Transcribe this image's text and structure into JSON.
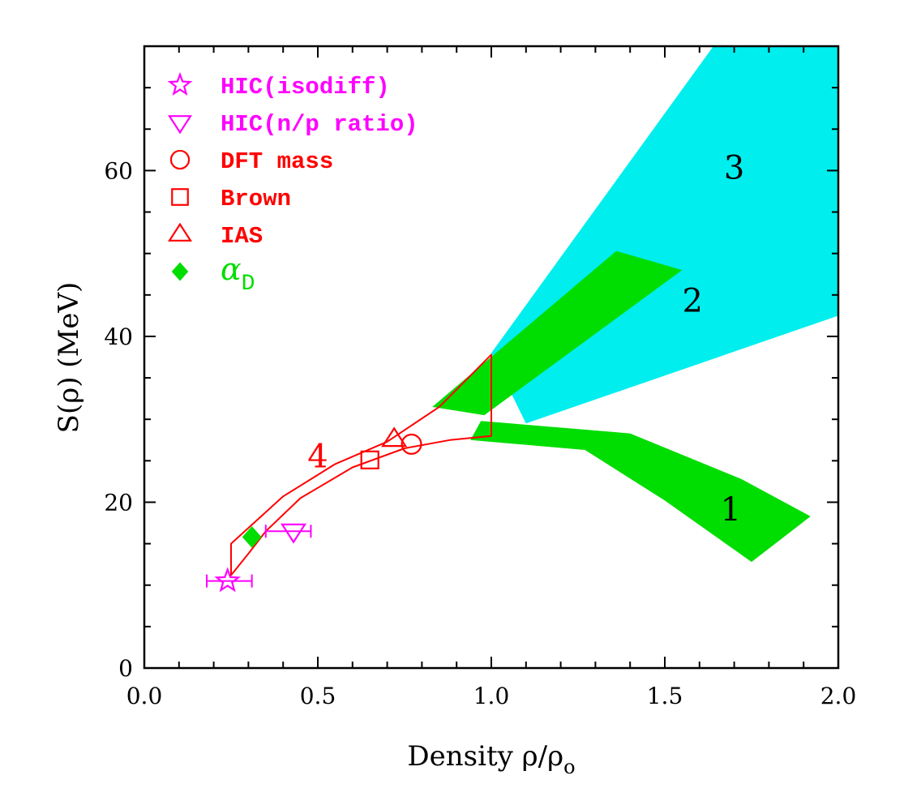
{
  "chart_data": {
    "type": "scatter",
    "xlabel": "Density ρ/ρ",
    "xlabel_sub": "o",
    "ylabel": "S(ρ)  (MeV)",
    "xlim": [
      0,
      2
    ],
    "ylim": [
      0,
      75
    ],
    "x_ticks": [
      0,
      0.5,
      1,
      1.5,
      2
    ],
    "x_tick_labels": [
      "0.0",
      "0.5",
      "1.0",
      "1.5",
      "2.0"
    ],
    "y_ticks": [
      0,
      20,
      40,
      60
    ],
    "y_tick_labels": [
      "0",
      "20",
      "40",
      "60"
    ],
    "minor_step_x": 0.1,
    "minor_step_y": 5,
    "grid": false,
    "legend_position": "top-left",
    "legend": [
      {
        "label": "HIC(isodiff)",
        "marker": "star-icon",
        "color": "#ff00ff"
      },
      {
        "label": "HIC(n/p ratio)",
        "marker": "triangle-down-icon",
        "color": "#ff00ff"
      },
      {
        "label": "DFT mass",
        "marker": "circle-icon",
        "color": "#ff0000"
      },
      {
        "label": "Brown",
        "marker": "square-icon",
        "color": "#ff0000"
      },
      {
        "label": "IAS",
        "marker": "triangle-up-icon",
        "color": "#ff0000"
      },
      {
        "label": "α",
        "label_sub": "D",
        "marker": "diamond-icon",
        "color": "#00dd00"
      }
    ],
    "points": [
      {
        "series": "HIC(isodiff)",
        "x": 0.24,
        "y": 10.5,
        "xerr": [
          0.18,
          0.31
        ],
        "marker": "star-icon",
        "color": "#ff00ff"
      },
      {
        "series": "HIC(n/p ratio)",
        "x": 0.43,
        "y": 16.5,
        "xerr": [
          0.35,
          0.48
        ],
        "marker": "triangle-down-icon",
        "color": "#ff00ff"
      },
      {
        "series": "DFT mass",
        "x": 0.77,
        "y": 27.0,
        "marker": "circle-icon",
        "color": "#ff0000"
      },
      {
        "series": "Brown",
        "x": 0.65,
        "y": 25.1,
        "marker": "square-icon",
        "color": "#ff0000"
      },
      {
        "series": "IAS",
        "x": 0.72,
        "y": 27.6,
        "marker": "triangle-up-icon",
        "color": "#ff0000"
      },
      {
        "series": "α_D",
        "x": 0.31,
        "y": 15.8,
        "marker": "diamond-icon",
        "color": "#00dd00"
      }
    ],
    "regions": [
      {
        "label": "3",
        "color": "#00eeee",
        "label_pos": [
          1.7,
          59
        ],
        "polygon": [
          [
            1.0,
            38
          ],
          [
            1.64,
            75
          ],
          [
            2.0,
            75
          ],
          [
            2.0,
            42.5
          ],
          [
            1.1,
            29.5
          ]
        ]
      },
      {
        "label": "2",
        "color": "#00dd00",
        "label_pos": [
          1.58,
          43
        ],
        "polygon": [
          [
            0.83,
            31.5
          ],
          [
            1.36,
            50.3
          ],
          [
            1.55,
            48
          ],
          [
            0.98,
            30.5
          ]
        ]
      },
      {
        "label": "1",
        "color": "#00dd00",
        "label_pos": [
          1.69,
          17.8
        ],
        "polygon": [
          [
            0.94,
            27.5
          ],
          [
            0.97,
            29.8
          ],
          [
            1.4,
            28.3
          ],
          [
            1.72,
            22.8
          ],
          [
            1.92,
            18.3
          ],
          [
            1.75,
            12.8
          ],
          [
            1.5,
            20.2
          ],
          [
            1.27,
            26.3
          ]
        ]
      },
      {
        "label": "4",
        "color": "#ff0000",
        "label_pos": [
          0.5,
          24.2
        ],
        "polygon": [
          [
            0.25,
            11.2
          ],
          [
            0.25,
            15
          ],
          [
            0.4,
            20.7
          ],
          [
            0.55,
            24.6
          ],
          [
            0.7,
            27.3
          ],
          [
            0.85,
            31.5
          ],
          [
            1.0,
            37.8
          ],
          [
            1.0,
            28.0
          ],
          [
            0.88,
            27.5
          ],
          [
            0.75,
            26.5
          ],
          [
            0.6,
            24.2
          ],
          [
            0.45,
            20.5
          ],
          [
            0.35,
            16.5
          ],
          [
            0.3,
            13.8
          ],
          [
            0.25,
            11.2
          ]
        ]
      }
    ]
  }
}
